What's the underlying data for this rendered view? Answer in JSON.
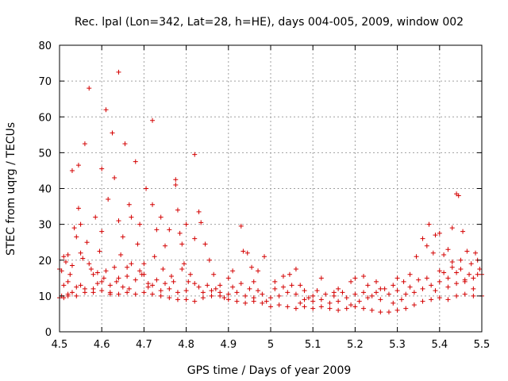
{
  "chart_data": {
    "type": "scatter",
    "title": "Rec. lpal (Lon=342, Lat=28, h=HE), days 004-005, 2009, window 002",
    "xlabel": "GPS time / Days of year 2009",
    "ylabel": "STEC from uqrg / TECUs",
    "xlim": [
      4.5,
      5.5
    ],
    "ylim": [
      0,
      80
    ],
    "grid": true,
    "marker": "+",
    "color": "#d40000",
    "x_ticks": [
      "4.5",
      "4.6",
      "4.7",
      "4.8",
      "4.9",
      "5",
      "5.1",
      "5.2",
      "5.3",
      "5.4",
      "5.5"
    ],
    "y_ticks": [
      "0",
      "10",
      "20",
      "30",
      "40",
      "50",
      "60",
      "70",
      "80"
    ],
    "series": [
      {
        "name": "STEC",
        "points": [
          [
            4.505,
            17
          ],
          [
            4.51,
            13
          ],
          [
            4.515,
            19.5
          ],
          [
            4.52,
            21.5
          ],
          [
            4.525,
            16
          ],
          [
            4.53,
            11
          ],
          [
            4.51,
            9.5
          ],
          [
            4.52,
            10
          ],
          [
            4.53,
            45
          ],
          [
            4.535,
            29
          ],
          [
            4.54,
            26.5
          ],
          [
            4.545,
            34.5
          ],
          [
            4.545,
            46.5
          ],
          [
            4.55,
            30
          ],
          [
            4.55,
            13
          ],
          [
            4.555,
            20.5
          ],
          [
            4.56,
            52.5
          ],
          [
            4.565,
            25
          ],
          [
            4.57,
            68
          ],
          [
            4.575,
            17.5
          ],
          [
            4.58,
            12
          ],
          [
            4.585,
            32
          ],
          [
            4.59,
            16.5
          ],
          [
            4.595,
            22.5
          ],
          [
            4.6,
            45.5
          ],
          [
            4.6,
            28
          ],
          [
            4.605,
            15
          ],
          [
            4.61,
            62
          ],
          [
            4.615,
            37
          ],
          [
            4.62,
            11
          ],
          [
            4.625,
            55.5
          ],
          [
            4.63,
            43
          ],
          [
            4.635,
            14
          ],
          [
            4.64,
            72.5
          ],
          [
            4.64,
            31
          ],
          [
            4.645,
            21.5
          ],
          [
            4.65,
            26.5
          ],
          [
            4.655,
            52.5
          ],
          [
            4.66,
            18
          ],
          [
            4.665,
            35.5
          ],
          [
            4.665,
            12
          ],
          [
            4.67,
            32
          ],
          [
            4.68,
            47.5
          ],
          [
            4.685,
            24.5
          ],
          [
            4.69,
            30
          ],
          [
            4.695,
            16
          ],
          [
            4.7,
            19
          ],
          [
            4.705,
            40
          ],
          [
            4.71,
            13.5
          ],
          [
            4.72,
            59
          ],
          [
            4.72,
            35.5
          ],
          [
            4.725,
            21
          ],
          [
            4.73,
            28.5
          ],
          [
            4.74,
            32
          ],
          [
            4.745,
            17.5
          ],
          [
            4.75,
            24
          ],
          [
            4.76,
            28.5
          ],
          [
            4.765,
            15.5
          ],
          [
            4.775,
            42.5
          ],
          [
            4.775,
            41
          ],
          [
            4.78,
            34
          ],
          [
            4.785,
            27.5
          ],
          [
            4.79,
            24.5
          ],
          [
            4.795,
            19
          ],
          [
            4.8,
            30
          ],
          [
            4.805,
            14
          ],
          [
            4.82,
            49.5
          ],
          [
            4.82,
            26
          ],
          [
            4.83,
            33.5
          ],
          [
            4.835,
            30.5
          ],
          [
            4.845,
            24.5
          ],
          [
            4.855,
            20
          ],
          [
            4.865,
            16
          ],
          [
            4.88,
            13
          ],
          [
            4.9,
            15
          ],
          [
            4.91,
            17
          ],
          [
            4.93,
            29.5
          ],
          [
            4.935,
            22.5
          ],
          [
            4.945,
            22
          ],
          [
            4.955,
            18
          ],
          [
            4.96,
            14
          ],
          [
            4.97,
            17
          ],
          [
            4.985,
            21
          ],
          [
            5.01,
            14
          ],
          [
            5.03,
            15.5
          ],
          [
            5.045,
            16
          ],
          [
            5.06,
            17.5
          ],
          [
            5.07,
            13
          ],
          [
            5.08,
            11.5
          ],
          [
            5.1,
            10
          ],
          [
            5.12,
            15
          ],
          [
            5.15,
            11
          ],
          [
            5.16,
            12
          ],
          [
            5.19,
            14
          ],
          [
            5.2,
            15
          ],
          [
            5.22,
            15.5
          ],
          [
            5.23,
            13
          ],
          [
            5.25,
            14
          ],
          [
            5.26,
            12
          ],
          [
            5.29,
            13
          ],
          [
            5.3,
            15
          ],
          [
            5.315,
            14
          ],
          [
            5.33,
            16
          ],
          [
            5.345,
            21
          ],
          [
            5.36,
            26
          ],
          [
            5.37,
            24
          ],
          [
            5.375,
            30
          ],
          [
            5.385,
            22
          ],
          [
            5.39,
            27
          ],
          [
            5.4,
            27.5
          ],
          [
            5.41,
            21.5
          ],
          [
            5.42,
            23
          ],
          [
            5.43,
            29
          ],
          [
            5.44,
            38.5
          ],
          [
            5.445,
            38
          ],
          [
            5.45,
            20
          ],
          [
            5.455,
            28
          ],
          [
            5.465,
            22.5
          ],
          [
            5.475,
            19
          ],
          [
            5.485,
            22
          ],
          [
            5.49,
            16
          ],
          [
            5.495,
            17.5
          ],
          [
            5.48,
            15
          ],
          [
            5.46,
            14.5
          ],
          [
            5.44,
            16.5
          ],
          [
            5.43,
            19.5
          ],
          [
            5.42,
            15
          ],
          [
            5.4,
            17
          ],
          [
            4.5,
            17.5
          ],
          [
            4.505,
            10
          ],
          [
            4.52,
            14
          ],
          [
            4.54,
            12.5
          ],
          [
            4.56,
            12
          ],
          [
            4.58,
            16
          ],
          [
            4.6,
            14
          ],
          [
            4.62,
            13
          ],
          [
            4.64,
            15
          ],
          [
            4.66,
            15.5
          ],
          [
            4.68,
            14.5
          ],
          [
            4.7,
            16
          ],
          [
            4.72,
            13
          ],
          [
            4.74,
            11.5
          ],
          [
            4.76,
            12
          ],
          [
            4.78,
            11
          ],
          [
            4.8,
            11.5
          ],
          [
            4.82,
            13.5
          ],
          [
            4.84,
            11
          ],
          [
            4.86,
            11.5
          ],
          [
            4.88,
            11
          ],
          [
            4.9,
            10.5
          ],
          [
            4.92,
            11
          ],
          [
            4.94,
            10
          ],
          [
            4.96,
            9.5
          ],
          [
            4.98,
            10.5
          ],
          [
            5.0,
            9.5
          ],
          [
            5.02,
            10
          ],
          [
            5.04,
            11
          ],
          [
            5.06,
            10.5
          ],
          [
            5.08,
            9
          ],
          [
            5.1,
            8.5
          ],
          [
            5.12,
            9
          ],
          [
            5.14,
            8
          ],
          [
            5.16,
            8.5
          ],
          [
            5.18,
            9.5
          ],
          [
            5.2,
            10.5
          ],
          [
            5.22,
            11
          ],
          [
            5.24,
            10
          ],
          [
            5.26,
            9
          ],
          [
            5.28,
            10.5
          ],
          [
            5.3,
            11.5
          ],
          [
            5.32,
            10.5
          ],
          [
            5.34,
            11
          ],
          [
            5.36,
            12
          ],
          [
            5.38,
            13
          ],
          [
            5.4,
            14
          ],
          [
            5.42,
            12.5
          ],
          [
            5.44,
            13.5
          ],
          [
            5.46,
            14
          ],
          [
            5.48,
            12
          ],
          [
            5.5,
            16
          ],
          [
            4.5,
            9.5
          ],
          [
            4.52,
            10.5
          ],
          [
            4.54,
            10
          ],
          [
            4.56,
            11
          ],
          [
            4.58,
            11
          ],
          [
            4.6,
            11.5
          ],
          [
            4.62,
            10.5
          ],
          [
            4.64,
            10.5
          ],
          [
            4.66,
            11
          ],
          [
            4.68,
            10.5
          ],
          [
            4.7,
            11
          ],
          [
            4.72,
            10.5
          ],
          [
            4.74,
            10
          ],
          [
            4.76,
            9.5
          ],
          [
            4.78,
            9
          ],
          [
            4.8,
            9
          ],
          [
            4.82,
            8.5
          ],
          [
            4.84,
            9.5
          ],
          [
            4.86,
            10
          ],
          [
            4.88,
            10
          ],
          [
            4.9,
            9
          ],
          [
            4.92,
            8.5
          ],
          [
            4.94,
            8
          ],
          [
            4.96,
            8.5
          ],
          [
            4.98,
            8
          ],
          [
            5.0,
            7
          ],
          [
            5.02,
            7.5
          ],
          [
            5.04,
            7
          ],
          [
            5.06,
            6.5
          ],
          [
            5.08,
            7
          ],
          [
            5.1,
            6.5
          ],
          [
            5.12,
            7
          ],
          [
            5.14,
            6.5
          ],
          [
            5.16,
            6
          ],
          [
            5.18,
            6.5
          ],
          [
            5.2,
            7
          ],
          [
            5.22,
            6.5
          ],
          [
            5.24,
            6
          ],
          [
            5.26,
            5.5
          ],
          [
            5.28,
            5.5
          ],
          [
            5.3,
            6
          ],
          [
            5.32,
            6.5
          ],
          [
            5.34,
            7.5
          ],
          [
            5.36,
            8.5
          ],
          [
            5.38,
            9
          ],
          [
            5.4,
            9.5
          ],
          [
            5.42,
            9
          ],
          [
            5.44,
            10
          ],
          [
            5.46,
            10.5
          ],
          [
            5.48,
            10
          ],
          [
            5.5,
            10
          ],
          [
            4.51,
            21
          ],
          [
            4.53,
            18.5
          ],
          [
            4.55,
            22
          ],
          [
            4.57,
            19
          ],
          [
            4.59,
            13.5
          ],
          [
            4.61,
            17
          ],
          [
            4.63,
            18
          ],
          [
            4.65,
            12.5
          ],
          [
            4.67,
            19
          ],
          [
            4.69,
            17
          ],
          [
            4.71,
            12.5
          ],
          [
            4.73,
            14.5
          ],
          [
            4.75,
            13.5
          ],
          [
            4.77,
            14
          ],
          [
            4.79,
            17.5
          ],
          [
            4.81,
            16
          ],
          [
            4.83,
            12.5
          ],
          [
            4.85,
            13
          ],
          [
            4.87,
            12
          ],
          [
            4.89,
            9.5
          ],
          [
            4.91,
            12.5
          ],
          [
            4.93,
            13.5
          ],
          [
            4.95,
            12
          ],
          [
            4.97,
            11.5
          ],
          [
            4.99,
            8.5
          ],
          [
            5.01,
            12
          ],
          [
            5.03,
            12.5
          ],
          [
            5.05,
            13
          ],
          [
            5.07,
            8
          ],
          [
            5.09,
            9.5
          ],
          [
            5.11,
            11.5
          ],
          [
            5.13,
            10.5
          ],
          [
            5.15,
            10
          ],
          [
            5.17,
            11
          ],
          [
            5.19,
            7.5
          ],
          [
            5.21,
            8.5
          ],
          [
            5.23,
            9.5
          ],
          [
            5.25,
            11
          ],
          [
            5.27,
            12
          ],
          [
            5.29,
            8
          ],
          [
            5.31,
            9
          ],
          [
            5.33,
            12.5
          ],
          [
            5.35,
            14.5
          ],
          [
            5.37,
            15
          ],
          [
            5.39,
            11.5
          ],
          [
            5.41,
            16.5
          ],
          [
            5.43,
            18
          ],
          [
            5.45,
            17.5
          ],
          [
            5.47,
            16
          ],
          [
            5.49,
            20
          ]
        ]
      }
    ]
  }
}
